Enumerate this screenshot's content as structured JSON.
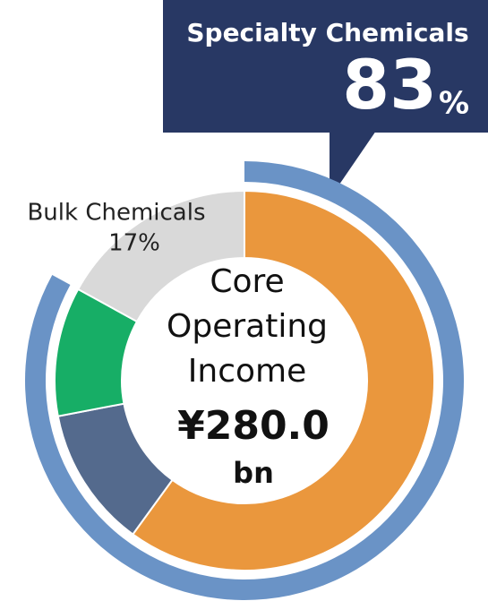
{
  "chart_data": {
    "type": "donut",
    "segments": {
      "categories": [
        null,
        null,
        null,
        "Bulk Chemicals"
      ],
      "values": [
        60,
        12,
        11,
        17
      ],
      "value_labels": [
        null,
        null,
        null,
        "17%"
      ],
      "colors": [
        "#ea973d",
        "#546a8d",
        "#17ae66",
        "#d9d9d9"
      ]
    },
    "outer": {
      "name": "Specialty Chemicals",
      "value": 83,
      "unit": "%",
      "color": "#6a93c6"
    },
    "center": {
      "lines": [
        "Core",
        "Operating",
        "Income"
      ],
      "value": "¥280.0",
      "unit": "bn"
    }
  }
}
